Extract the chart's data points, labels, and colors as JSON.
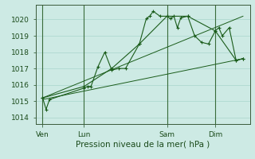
{
  "background_color": "#cdeae4",
  "grid_color": "#a8d5cc",
  "line_color": "#1a5c1a",
  "ylabel_values": [
    1014,
    1015,
    1016,
    1017,
    1018,
    1019,
    1020
  ],
  "xlabel": "Pression niveau de la mer( hPa )",
  "xlabel_fontsize": 7.5,
  "tick_fontsize": 6.5,
  "day_labels": [
    "Ven",
    "Lun",
    "Sam",
    "Dim"
  ],
  "day_positions": [
    2,
    14,
    38,
    52
  ],
  "ylim": [
    1013.6,
    1020.9
  ],
  "xlim": [
    0,
    62
  ],
  "series1_x": [
    2,
    3,
    4,
    14,
    15,
    16,
    18,
    20,
    22,
    24,
    26,
    30,
    32,
    33,
    34,
    36,
    38,
    39,
    40,
    41,
    42,
    44,
    46,
    48,
    50,
    52,
    53,
    54,
    56,
    58,
    60
  ],
  "series1_y": [
    1015.2,
    1014.5,
    1015.1,
    1015.8,
    1015.9,
    1015.9,
    1017.1,
    1018.0,
    1016.9,
    1017.0,
    1017.0,
    1018.5,
    1020.05,
    1020.2,
    1020.5,
    1020.2,
    1020.2,
    1020.05,
    1020.2,
    1019.5,
    1020.1,
    1020.2,
    1019.0,
    1018.6,
    1018.5,
    1019.3,
    1019.5,
    1019.0,
    1019.5,
    1017.5,
    1017.6
  ],
  "series2_x": [
    2,
    14,
    22,
    30,
    38,
    44,
    52,
    58,
    60
  ],
  "series2_y": [
    1015.2,
    1015.9,
    1017.0,
    1018.5,
    1020.2,
    1020.2,
    1019.3,
    1017.5,
    1017.6
  ],
  "series3_x": [
    2,
    60
  ],
  "series3_y": [
    1015.1,
    1017.6
  ],
  "series4_x": [
    2,
    60
  ],
  "series4_y": [
    1015.2,
    1020.2
  ]
}
